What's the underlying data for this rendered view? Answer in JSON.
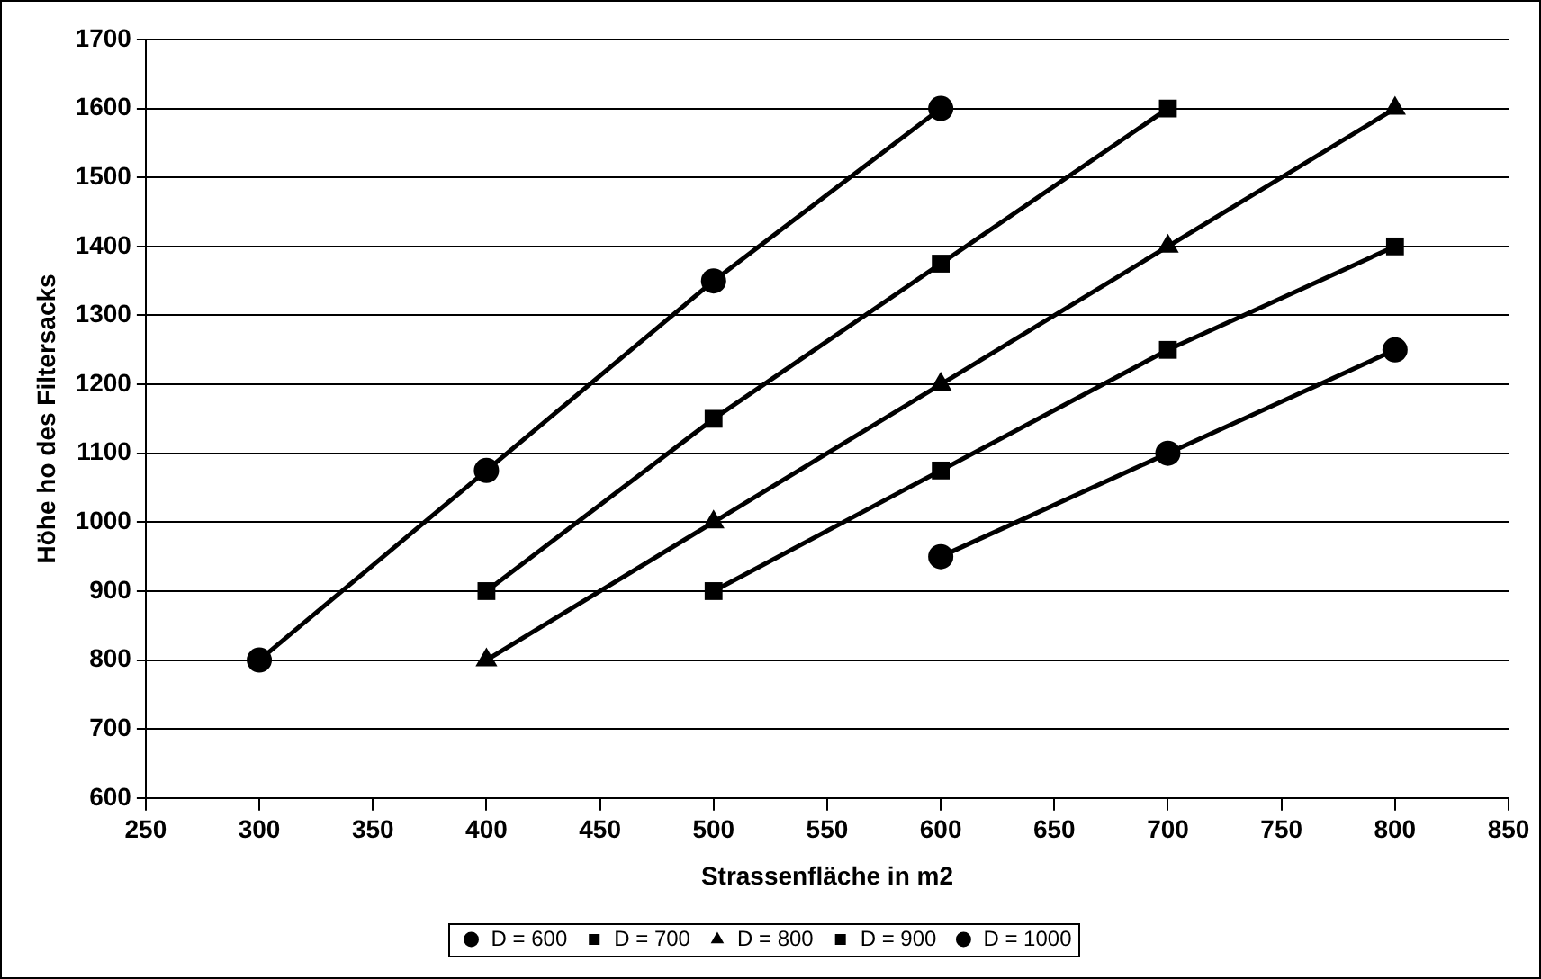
{
  "chart_data": {
    "type": "line",
    "xlabel": "Strassenfläche in m2",
    "ylabel": "Höhe ho des Filtersacks",
    "xlim": [
      250,
      850
    ],
    "xticks": [
      250,
      300,
      350,
      400,
      450,
      500,
      550,
      600,
      650,
      700,
      750,
      800,
      850
    ],
    "ylim": [
      600,
      1700
    ],
    "yticks": [
      600,
      700,
      800,
      900,
      1000,
      1100,
      1200,
      1300,
      1400,
      1500,
      1600,
      1700
    ],
    "grid": "y",
    "legend": "bottom",
    "line_style": "solid",
    "series": [
      {
        "name": "D = 600",
        "color": "#000000",
        "marker": "circle",
        "x": [
          300,
          400,
          500,
          600
        ],
        "values": [
          800,
          1075,
          1350,
          1600
        ]
      },
      {
        "name": "D = 700",
        "color": "#000000",
        "marker": "square",
        "x": [
          400,
          500,
          600,
          700
        ],
        "values": [
          900,
          1150,
          1375,
          1600
        ]
      },
      {
        "name": "D = 800",
        "color": "#000000",
        "marker": "triangle",
        "x": [
          400,
          500,
          600,
          700,
          800
        ],
        "values": [
          800,
          1000,
          1200,
          1400,
          1600
        ]
      },
      {
        "name": "D = 900",
        "color": "#000000",
        "marker": "square",
        "x": [
          500,
          600,
          700,
          800
        ],
        "values": [
          900,
          1075,
          1250,
          1400
        ]
      },
      {
        "name": "D = 1000",
        "color": "#000000",
        "marker": "circle",
        "x": [
          600,
          700,
          800
        ],
        "values": [
          950,
          1100,
          1250
        ]
      }
    ]
  }
}
